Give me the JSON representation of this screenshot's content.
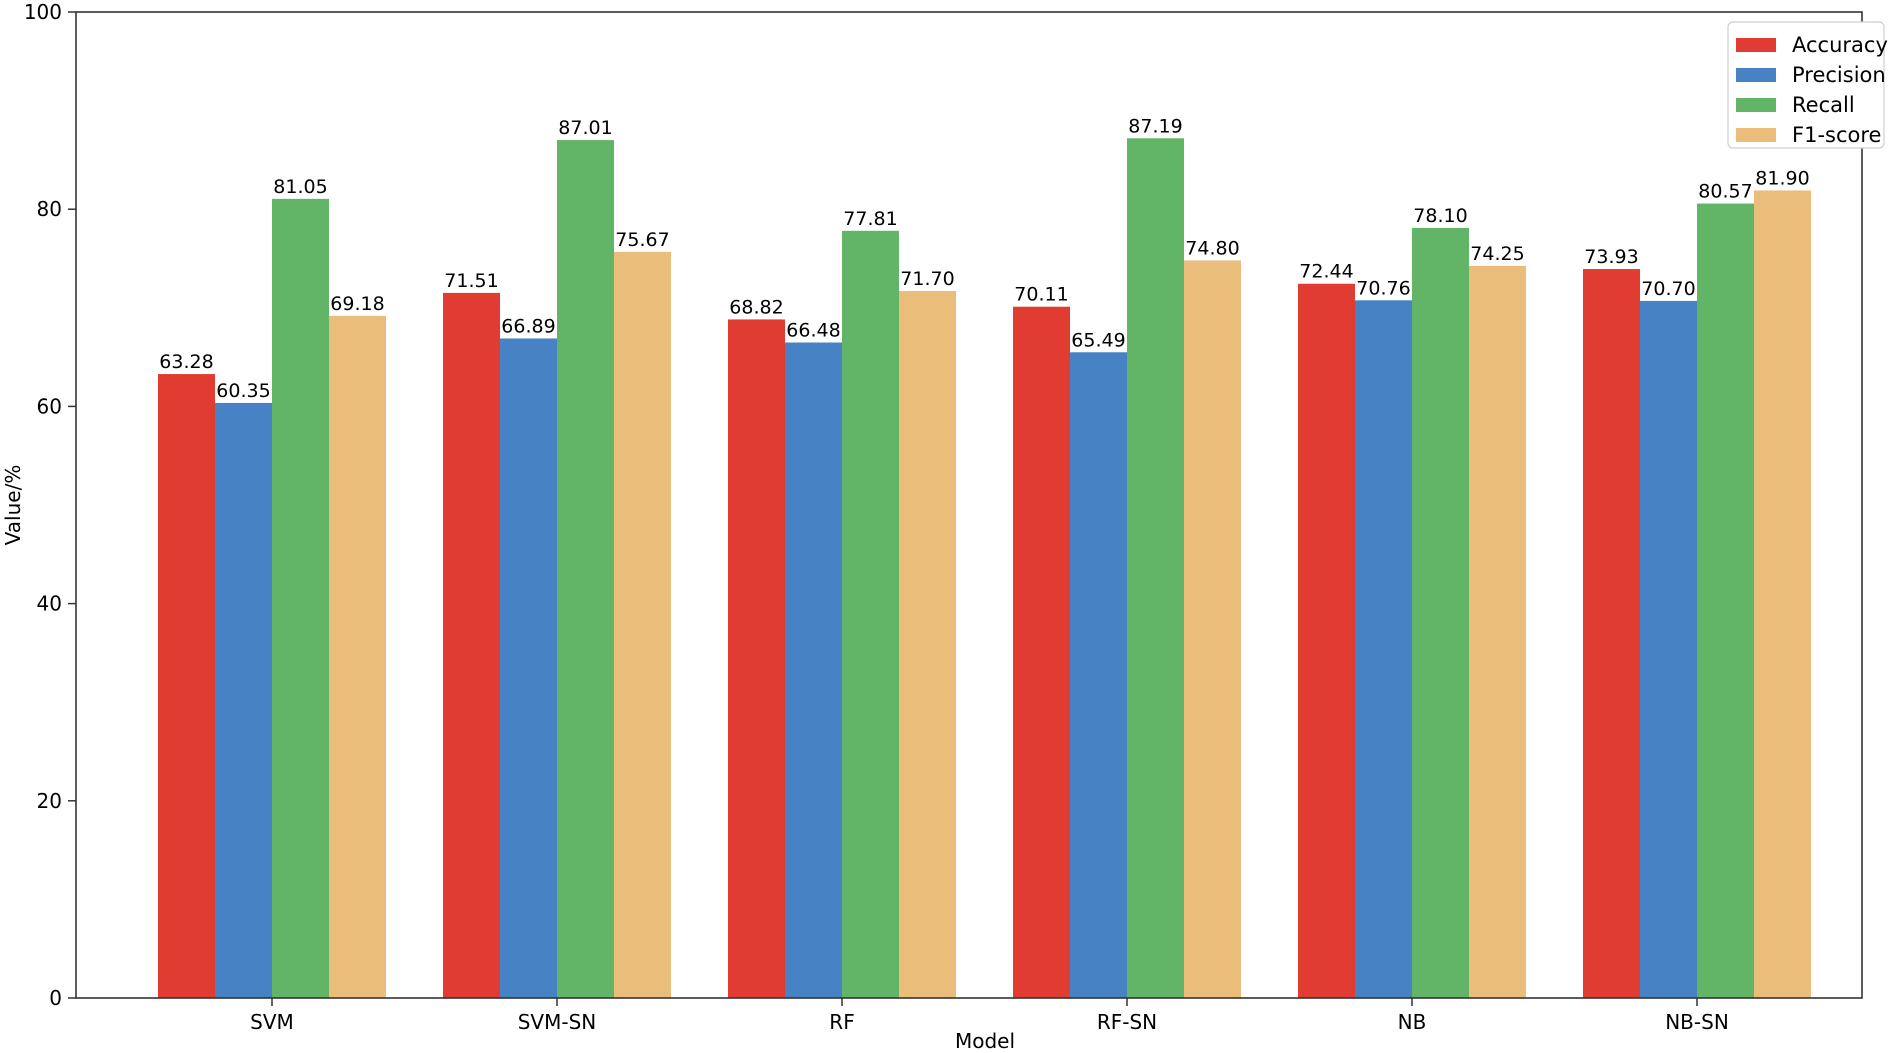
{
  "chart_data": {
    "type": "bar",
    "title": "",
    "xlabel": "Model",
    "ylabel": "Value/%",
    "ylim": [
      0,
      100
    ],
    "yticks": [
      0,
      20,
      40,
      60,
      80,
      100
    ],
    "grid": false,
    "legend_position": "top-right",
    "categories": [
      "SVM",
      "SVM-SN",
      "RF",
      "RF-SN",
      "NB",
      "NB-SN"
    ],
    "series": [
      {
        "name": "Accuracy",
        "color": "#e03c31",
        "values": [
          63.28,
          71.51,
          68.82,
          70.11,
          72.44,
          73.93
        ],
        "labels": [
          "63.28",
          "71.51",
          "68.82",
          "70.11",
          "72.44",
          "73.93"
        ]
      },
      {
        "name": "Precision",
        "color": "#4682c4",
        "values": [
          60.35,
          66.89,
          66.48,
          65.49,
          70.76,
          70.7
        ],
        "labels": [
          "60.35",
          "66.89",
          "66.48",
          "65.49",
          "70.76",
          "70.70"
        ]
      },
      {
        "name": "Recall",
        "color": "#62b466",
        "values": [
          81.05,
          87.01,
          77.81,
          87.19,
          78.1,
          80.57
        ],
        "labels": [
          "81.05",
          "87.01",
          "77.81",
          "87.19",
          "78.10",
          "80.57"
        ]
      },
      {
        "name": "F1-score",
        "color": "#eabd7a",
        "values": [
          69.18,
          75.67,
          71.7,
          74.8,
          74.25,
          81.9
        ],
        "labels": [
          "69.18",
          "75.67",
          "71.70",
          "74.80",
          "74.25",
          "81.90"
        ]
      }
    ]
  }
}
